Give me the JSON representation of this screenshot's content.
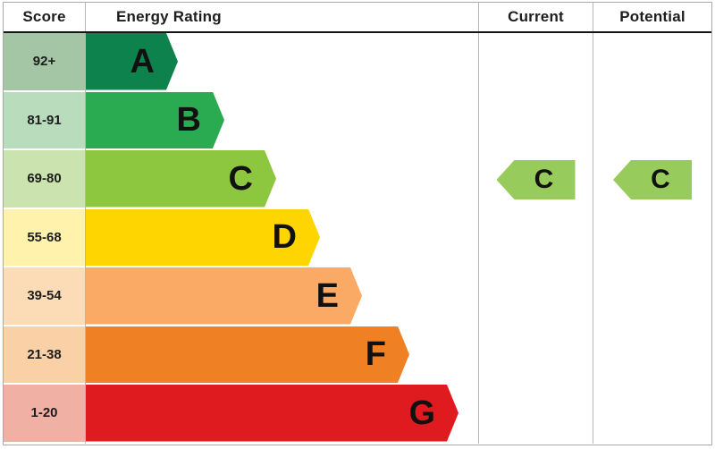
{
  "header": {
    "score": "Score",
    "energy_rating": "Energy Rating",
    "current": "Current",
    "potential": "Potential"
  },
  "bands": [
    {
      "letter": "A",
      "score": "92+",
      "color": "#0d824c",
      "tint": "#a4c6a4"
    },
    {
      "letter": "B",
      "score": "81-91",
      "color": "#2bab51",
      "tint": "#b9dcbd"
    },
    {
      "letter": "C",
      "score": "69-80",
      "color": "#8dc63f",
      "tint": "#cbe3ae"
    },
    {
      "letter": "D",
      "score": "55-68",
      "color": "#ffd500",
      "tint": "#fef2ad"
    },
    {
      "letter": "E",
      "score": "39-54",
      "color": "#fbaa65",
      "tint": "#fcdcb7"
    },
    {
      "letter": "F",
      "score": "21-38",
      "color": "#ef8023",
      "tint": "#fad0a6"
    },
    {
      "letter": "G",
      "score": "1-20",
      "color": "#e01b20",
      "tint": "#f0b0a4"
    }
  ],
  "current": {
    "rating": "C",
    "color": "#97cb5c"
  },
  "potential": {
    "rating": "C",
    "color": "#97cb5c"
  },
  "chart_data": {
    "type": "bar",
    "orientation": "horizontal",
    "title": "Energy Rating",
    "categories": [
      "A",
      "B",
      "C",
      "D",
      "E",
      "F",
      "G"
    ],
    "score_ranges": [
      "92+",
      "81-91",
      "69-80",
      "55-68",
      "39-54",
      "21-38",
      "1-20"
    ],
    "relative_bar_lengths": [
      1.0,
      1.5,
      2.07,
      2.54,
      3.0,
      3.51,
      4.05
    ],
    "colors": [
      "#0d824c",
      "#2bab51",
      "#8dc63f",
      "#ffd500",
      "#fbaa65",
      "#ef8023",
      "#e01b20"
    ],
    "current_rating": "C",
    "potential_rating": "C",
    "legend_position": "none",
    "grid": false
  }
}
